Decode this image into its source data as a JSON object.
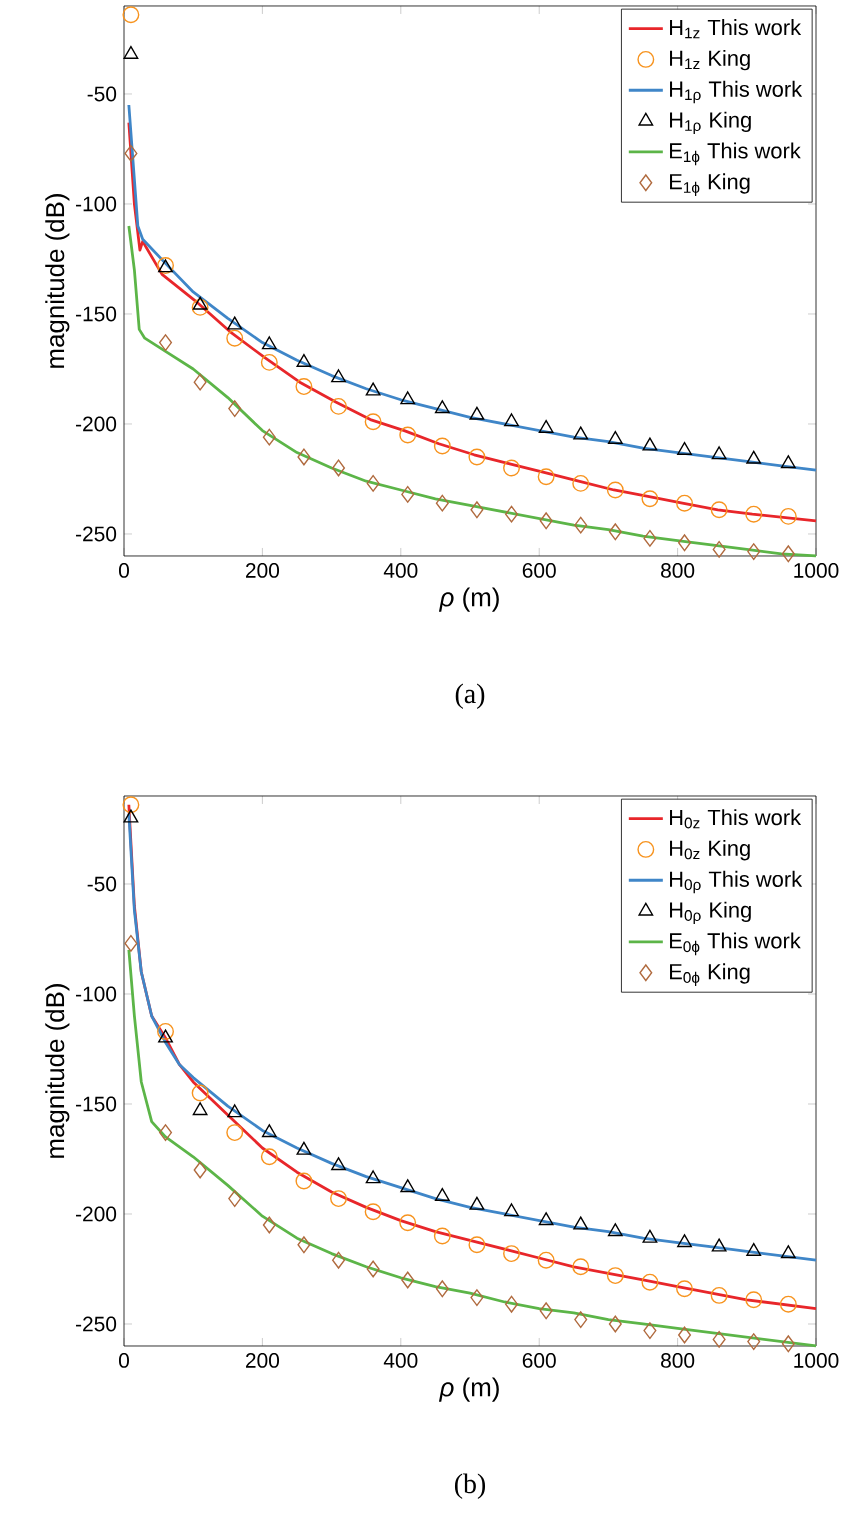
{
  "chart_data": [
    {
      "type": "line",
      "xlabel": "*ρ* (m)",
      "ylabel": "magnitude (dB)",
      "xlim": [
        0,
        1000
      ],
      "xticks": [
        0,
        200,
        400,
        600,
        800,
        1000
      ],
      "ylim": [
        -260,
        -10
      ],
      "yticks": [
        -250,
        -200,
        -150,
        -100,
        -50
      ],
      "legend": "top right",
      "annotations": [
        "(a)"
      ],
      "series": [
        {
          "name": "H$_{1z}$ This work",
          "marker": "none",
          "color": "#e8262a",
          "x": [
            7,
            15,
            23,
            27,
            55,
            103,
            153,
            204,
            254,
            306,
            356,
            405,
            455,
            506,
            556,
            607,
            657,
            708,
            759,
            807,
            858,
            908,
            1000
          ],
          "values": [
            -63,
            -100,
            -121,
            -117,
            -132,
            -144,
            -158,
            -170,
            -181,
            -190,
            -198,
            -203,
            -209,
            -214,
            -218,
            -222,
            -226,
            -230,
            -233,
            -236,
            -239,
            -241,
            -244
          ]
        },
        {
          "name": "H$_{1z}$ King",
          "type": "scatter",
          "marker": "circle",
          "color": "#f7931e",
          "x": [
            10,
            60,
            110,
            160,
            210,
            260,
            310,
            360,
            410,
            460,
            510,
            560,
            610,
            660,
            710,
            760,
            810,
            860,
            910,
            960
          ],
          "values": [
            -14,
            -128,
            -147,
            -161,
            -172,
            -183,
            -192,
            -199,
            -205,
            -210,
            -215,
            -220,
            -224,
            -227,
            -230,
            -234,
            -236,
            -239,
            -241,
            -242
          ]
        },
        {
          "name": "H$_{1ρ}$ This work",
          "marker": "none",
          "color": "#3f86c8",
          "x": [
            7,
            20,
            27,
            60,
            100,
            150,
            200,
            250,
            300,
            350,
            400,
            450,
            500,
            550,
            600,
            650,
            700,
            750,
            800,
            850,
            900,
            950,
            1000
          ],
          "values": [
            -55,
            -110,
            -116,
            -127,
            -140,
            -152,
            -163,
            -171,
            -178,
            -184,
            -189,
            -193,
            -197,
            -200,
            -203,
            -206,
            -208,
            -211,
            -213,
            -215,
            -217,
            -219,
            -221
          ]
        },
        {
          "name": "H$_{1ρ}$ King",
          "type": "scatter",
          "marker": "triangle",
          "color": "#000000",
          "x": [
            10,
            60,
            110,
            160,
            210,
            260,
            310,
            360,
            410,
            460,
            510,
            560,
            610,
            660,
            710,
            760,
            810,
            860,
            910,
            960
          ],
          "values": [
            -32,
            -129,
            -146,
            -155,
            -164,
            -172,
            -179,
            -185,
            -189,
            -193,
            -196,
            -199,
            -202,
            -205,
            -207,
            -210,
            -212,
            -214,
            -216,
            -218
          ]
        },
        {
          "name": "E$_{1ϕ}$ This work",
          "marker": "none",
          "color": "#5cb548",
          "x": [
            7,
            15,
            22,
            30,
            60,
            100,
            150,
            200,
            250,
            300,
            350,
            400,
            450,
            500,
            550,
            600,
            650,
            700,
            750,
            800,
            850,
            900,
            950,
            1000
          ],
          "values": [
            -110,
            -130,
            -157,
            -161,
            -167,
            -175,
            -188,
            -203,
            -213,
            -220,
            -226,
            -230,
            -234,
            -237,
            -240,
            -243,
            -246,
            -248,
            -251,
            -253,
            -255,
            -257,
            -259,
            -260
          ]
        },
        {
          "name": "E$_{1ϕ}$ King",
          "type": "scatter",
          "marker": "diamond",
          "color": "#b06a3e",
          "x": [
            10,
            60,
            110,
            160,
            210,
            260,
            310,
            360,
            410,
            460,
            510,
            560,
            610,
            660,
            710,
            760,
            810,
            860,
            910,
            960
          ],
          "values": [
            -77,
            -163,
            -181,
            -193,
            -206,
            -215,
            -220,
            -227,
            -232,
            -236,
            -239,
            -241,
            -244,
            -246,
            -249,
            -252,
            -254,
            -257,
            -258,
            -259
          ]
        }
      ]
    },
    {
      "type": "line",
      "xlabel": "*ρ* (m)",
      "ylabel": "magnitude (dB)",
      "xlim": [
        0,
        1000
      ],
      "xticks": [
        0,
        200,
        400,
        600,
        800,
        1000
      ],
      "ylim": [
        -260,
        -10
      ],
      "yticks": [
        -250,
        -200,
        -150,
        -100,
        -50
      ],
      "legend": "top right",
      "annotations": [
        "(b)"
      ],
      "series": [
        {
          "name": "H$_{0z}$ This work",
          "marker": "none",
          "color": "#e8262a",
          "x": [
            7,
            15,
            25,
            40,
            60,
            80,
            100,
            150,
            200,
            250,
            300,
            350,
            400,
            450,
            500,
            550,
            600,
            650,
            700,
            750,
            800,
            850,
            900,
            950,
            1000
          ],
          "values": [
            -14,
            -60,
            -90,
            -110,
            -120,
            -132,
            -140,
            -155,
            -170,
            -181,
            -190,
            -197,
            -203,
            -208,
            -212,
            -216,
            -220,
            -224,
            -227,
            -230,
            -233,
            -236,
            -239,
            -241,
            -243
          ]
        },
        {
          "name": "H$_{0z}$ King",
          "type": "scatter",
          "marker": "circle",
          "color": "#f7931e",
          "x": [
            10,
            60,
            110,
            160,
            210,
            260,
            310,
            360,
            410,
            460,
            510,
            560,
            610,
            660,
            710,
            760,
            810,
            860,
            910,
            960
          ],
          "values": [
            -14,
            -117,
            -145,
            -163,
            -174,
            -185,
            -193,
            -199,
            -204,
            -210,
            -214,
            -218,
            -221,
            -224,
            -228,
            -231,
            -234,
            -237,
            -239,
            -241
          ]
        },
        {
          "name": "H$_{0ρ}$ This work",
          "marker": "none",
          "color": "#3f86c8",
          "x": [
            7,
            15,
            25,
            40,
            60,
            80,
            100,
            150,
            200,
            250,
            300,
            350,
            400,
            450,
            500,
            550,
            600,
            650,
            700,
            750,
            800,
            850,
            900,
            950,
            1000
          ],
          "values": [
            -18,
            -62,
            -90,
            -110,
            -122,
            -132,
            -138,
            -151,
            -162,
            -170,
            -177,
            -183,
            -188,
            -193,
            -197,
            -200,
            -203,
            -206,
            -208,
            -211,
            -213,
            -215,
            -217,
            -219,
            -221
          ]
        },
        {
          "name": "H$_{0ρ}$ King",
          "type": "scatter",
          "marker": "triangle",
          "color": "#000000",
          "x": [
            10,
            60,
            110,
            160,
            210,
            260,
            310,
            360,
            410,
            460,
            510,
            560,
            610,
            660,
            710,
            760,
            810,
            860,
            910,
            960
          ],
          "values": [
            -20,
            -120,
            -153,
            -154,
            -163,
            -171,
            -178,
            -184,
            -188,
            -192,
            -196,
            -199,
            -203,
            -205,
            -208,
            -211,
            -213,
            -215,
            -217,
            -218
          ]
        },
        {
          "name": "E$_{0ϕ}$ This work",
          "marker": "none",
          "color": "#5cb548",
          "x": [
            7,
            15,
            25,
            40,
            60,
            100,
            150,
            200,
            250,
            300,
            350,
            400,
            450,
            500,
            550,
            600,
            650,
            700,
            750,
            800,
            850,
            900,
            950,
            1000
          ],
          "values": [
            -80,
            -110,
            -140,
            -158,
            -165,
            -174,
            -187,
            -201,
            -211,
            -218,
            -224,
            -229,
            -233,
            -236,
            -240,
            -243,
            -245,
            -248,
            -250,
            -252,
            -254,
            -256,
            -258,
            -260
          ]
        },
        {
          "name": "E$_{0ϕ}$ King",
          "type": "scatter",
          "marker": "diamond",
          "color": "#b06a3e",
          "x": [
            10,
            60,
            110,
            160,
            210,
            260,
            310,
            360,
            410,
            460,
            510,
            560,
            610,
            660,
            710,
            760,
            810,
            860,
            910,
            960
          ],
          "values": [
            -77,
            -163,
            -180,
            -193,
            -205,
            -214,
            -221,
            -225,
            -230,
            -234,
            -238,
            -241,
            -244,
            -248,
            -250,
            -253,
            -255,
            -257,
            -258,
            -259
          ]
        }
      ]
    }
  ]
}
